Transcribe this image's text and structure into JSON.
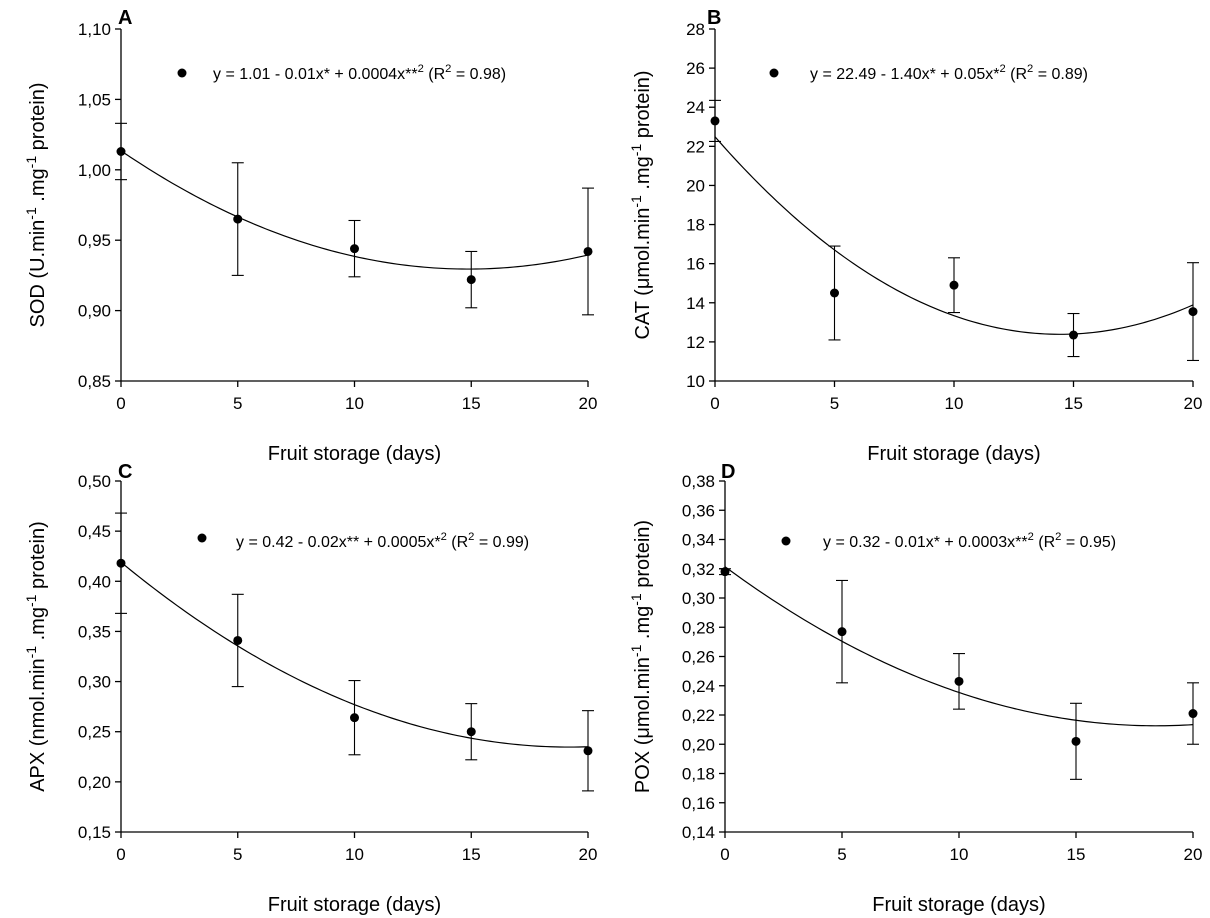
{
  "chart_data": [
    {
      "type": "scatter",
      "panel_label": "A",
      "xlabel": "Fruit storage (days)",
      "ylabel_parts": [
        "SOD (U.min",
        "-1",
        " .mg",
        "-1",
        " protein)"
      ],
      "x": [
        0,
        5,
        10,
        15,
        20
      ],
      "y": [
        1.013,
        0.965,
        0.944,
        0.922,
        0.942
      ],
      "err": [
        0.02,
        0.04,
        0.02,
        0.02,
        0.045
      ],
      "fit": {
        "a": 1.0135,
        "b": -0.0113,
        "c": 0.00038
      },
      "equation_parts": [
        "y = 1.01 - 0.01x* + 0.0004x**",
        "2",
        " (R",
        "2",
        " = 0.98)"
      ],
      "xlim": [
        0,
        20
      ],
      "ylim": [
        0.85,
        1.1
      ],
      "xticks": [
        0,
        5,
        10,
        15,
        20
      ],
      "xtick_labels": [
        "0",
        "5",
        "10",
        "15",
        "20"
      ],
      "yticks": [
        0.85,
        0.9,
        0.95,
        1.0,
        1.05,
        1.1
      ],
      "ytick_labels": [
        "0,85",
        "0,90",
        "0,95",
        "1,00",
        "1,05",
        "1,10"
      ]
    },
    {
      "type": "scatter",
      "panel_label": "B",
      "xlabel": "Fruit storage (days)",
      "ylabel_parts": [
        "CAT (μmol.min",
        "-1",
        " .mg",
        "-1",
        " protein)"
      ],
      "x": [
        0,
        5,
        10,
        15,
        20
      ],
      "y": [
        23.3,
        14.5,
        14.9,
        12.35,
        13.55
      ],
      "err": [
        1.05,
        2.4,
        1.4,
        1.1,
        2.5
      ],
      "fit": {
        "a": 22.49,
        "b": -1.4,
        "c": 0.0485
      },
      "equation_parts": [
        "y = 22.49 - 1.40x* + 0.05x*",
        "2",
        " (R",
        "2",
        " = 0.89)"
      ],
      "xlim": [
        0,
        20
      ],
      "ylim": [
        10,
        28
      ],
      "xticks": [
        0,
        5,
        10,
        15,
        20
      ],
      "xtick_labels": [
        "0",
        "5",
        "10",
        "15",
        "20"
      ],
      "yticks": [
        10,
        12,
        14,
        16,
        18,
        20,
        22,
        24,
        26,
        28
      ],
      "ytick_labels": [
        "10",
        "12",
        "14",
        "16",
        "18",
        "20",
        "22",
        "24",
        "26",
        "28"
      ]
    },
    {
      "type": "scatter",
      "panel_label": "C",
      "xlabel": "Fruit storage (days)",
      "ylabel_parts": [
        "APX (nmol.min",
        "-1",
        " .mg",
        "-1",
        " protein)"
      ],
      "x": [
        0,
        5,
        10,
        15,
        20
      ],
      "y": [
        0.418,
        0.341,
        0.264,
        0.25,
        0.231
      ],
      "err": [
        0.05,
        0.046,
        0.037,
        0.028,
        0.04
      ],
      "fit": {
        "a": 0.419,
        "b": -0.0192,
        "c": 0.0005
      },
      "equation_parts": [
        "y = 0.42 - 0.02x** + 0.0005x*",
        "2",
        " (R",
        "2",
        " = 0.99)"
      ],
      "xlim": [
        0,
        20
      ],
      "ylim": [
        0.15,
        0.5
      ],
      "xticks": [
        0,
        5,
        10,
        15,
        20
      ],
      "xtick_labels": [
        "0",
        "5",
        "10",
        "15",
        "20"
      ],
      "yticks": [
        0.15,
        0.2,
        0.25,
        0.3,
        0.35,
        0.4,
        0.45,
        0.5
      ],
      "ytick_labels": [
        "0,15",
        "0,20",
        "0,25",
        "0,30",
        "0,35",
        "0,40",
        "0,45",
        "0,50"
      ]
    },
    {
      "type": "scatter",
      "panel_label": "D",
      "xlabel": "Fruit storage (days)",
      "ylabel_parts": [
        "POX (μmol.min",
        "-1",
        " .mg",
        "-1",
        " protein)"
      ],
      "x": [
        0,
        5,
        10,
        15,
        20
      ],
      "y": [
        0.318,
        0.277,
        0.243,
        0.202,
        0.221
      ],
      "err": [
        0.002,
        0.035,
        0.019,
        0.026,
        0.021
      ],
      "fit": {
        "a": 0.3214,
        "b": -0.0118,
        "c": 0.00032
      },
      "equation_parts": [
        "y = 0.32 - 0.01x* + 0.0003x**",
        "2",
        " (R",
        "2",
        " = 0.95)"
      ],
      "xlim": [
        0,
        20
      ],
      "ylim": [
        0.14,
        0.38
      ],
      "xticks": [
        0,
        5,
        10,
        15,
        20
      ],
      "xtick_labels": [
        "0",
        "5",
        "10",
        "15",
        "20"
      ],
      "yticks": [
        0.14,
        0.16,
        0.18,
        0.2,
        0.22,
        0.24,
        0.26,
        0.28,
        0.3,
        0.32,
        0.34,
        0.36,
        0.38
      ],
      "ytick_labels": [
        "0,14",
        "0,16",
        "0,18",
        "0,20",
        "0,22",
        "0,24",
        "0,26",
        "0,28",
        "0,30",
        "0,32",
        "0,34",
        "0,36",
        "0,38"
      ]
    }
  ]
}
